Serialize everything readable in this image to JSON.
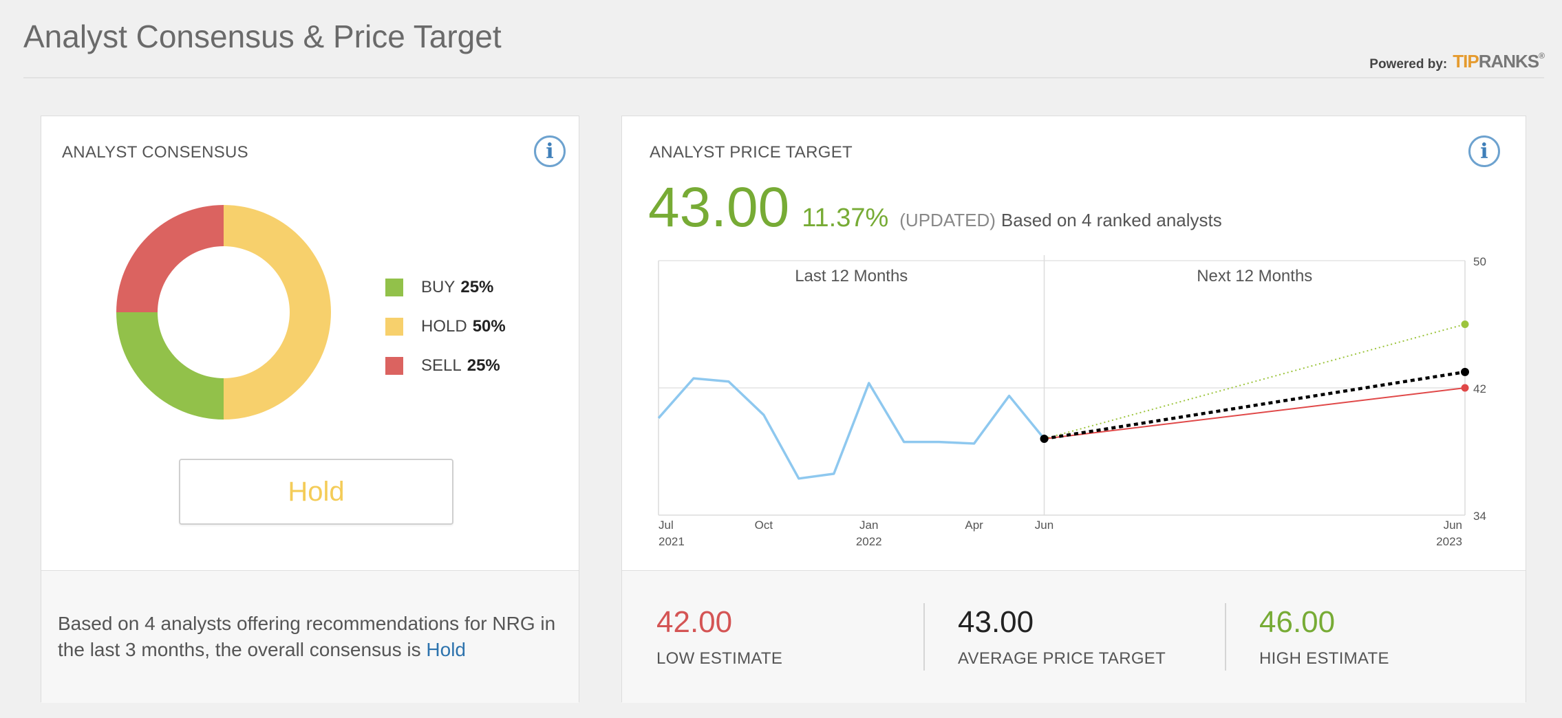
{
  "page": {
    "title": "Analyst Consensus & Price Target",
    "powered_by": "Powered by:",
    "brand_logo": "TipRanks"
  },
  "consensus": {
    "heading": "ANALYST CONSENSUS",
    "segments": [
      {
        "label": "BUY",
        "pct": "25%",
        "value": 25,
        "color": "#92c14a"
      },
      {
        "label": "HOLD",
        "pct": "50%",
        "value": 50,
        "color": "#f7d06c"
      },
      {
        "label": "SELL",
        "pct": "25%",
        "value": 25,
        "color": "#db6360"
      }
    ],
    "rating_button": "Hold",
    "summary_text": "Based on 4 analysts offering recommendations for NRG in the last 3 months, the overall consensus is",
    "summary_link": "Hold"
  },
  "price_target": {
    "heading": "ANALYST PRICE TARGET",
    "value": "43.00",
    "change": "11.37%",
    "updated": "(UPDATED)",
    "based_on": "Based on 4 ranked analysts",
    "low": {
      "value": "42.00",
      "label": "LOW ESTIMATE",
      "color": "#d45454"
    },
    "average": {
      "value": "43.00",
      "label": "AVERAGE PRICE TARGET",
      "color": "#222222"
    },
    "high": {
      "value": "46.00",
      "label": "HIGH ESTIMATE",
      "color": "#77ab35"
    }
  },
  "chart_data": [
    {
      "type": "pie",
      "categories": [
        "BUY",
        "HOLD",
        "SELL"
      ],
      "values": [
        25,
        50,
        25
      ],
      "colors": [
        "#92c14a",
        "#f7d06c",
        "#db6360"
      ],
      "legend_position": "right"
    },
    {
      "type": "line",
      "section_labels": [
        "Last 12 Months",
        "Next 12 Months"
      ],
      "x_ticks": [
        {
          "label": "Jul",
          "sub": "2021",
          "t": 0
        },
        {
          "label": "Oct",
          "sub": "",
          "t": 3
        },
        {
          "label": "Jan",
          "sub": "2022",
          "t": 6
        },
        {
          "label": "Apr",
          "sub": "",
          "t": 9
        },
        {
          "label": "Jun",
          "sub": "",
          "t": 11
        },
        {
          "label": "Jun",
          "sub": "2023",
          "t": 23
        }
      ],
      "y_ticks": [
        34,
        42,
        50
      ],
      "ylim": [
        34,
        50
      ],
      "grid": true,
      "series": [
        {
          "kind": "history",
          "color": "#8ec8ef",
          "points": [
            {
              "t": 0,
              "y": 40.1
            },
            {
              "t": 1,
              "y": 42.6
            },
            {
              "t": 2,
              "y": 42.4
            },
            {
              "t": 3,
              "y": 40.3
            },
            {
              "t": 4,
              "y": 36.3
            },
            {
              "t": 5,
              "y": 36.6
            },
            {
              "t": 6,
              "y": 42.3
            },
            {
              "t": 7,
              "y": 38.6
            },
            {
              "t": 8,
              "y": 38.6
            },
            {
              "t": 9,
              "y": 38.5
            },
            {
              "t": 10,
              "y": 41.5
            },
            {
              "t": 11,
              "y": 38.8
            }
          ]
        },
        {
          "kind": "high",
          "color": "#9cc43c",
          "dash": "dotted",
          "points": [
            {
              "t": 11,
              "y": 38.8
            },
            {
              "t": 23,
              "y": 46
            }
          ]
        },
        {
          "kind": "average",
          "color": "#000000",
          "dash": "dashed",
          "points": [
            {
              "t": 11,
              "y": 38.8
            },
            {
              "t": 23,
              "y": 43
            }
          ]
        },
        {
          "kind": "low",
          "color": "#e04848",
          "dash": "solid",
          "points": [
            {
              "t": 11,
              "y": 38.8
            },
            {
              "t": 23,
              "y": 42
            }
          ]
        }
      ]
    }
  ]
}
